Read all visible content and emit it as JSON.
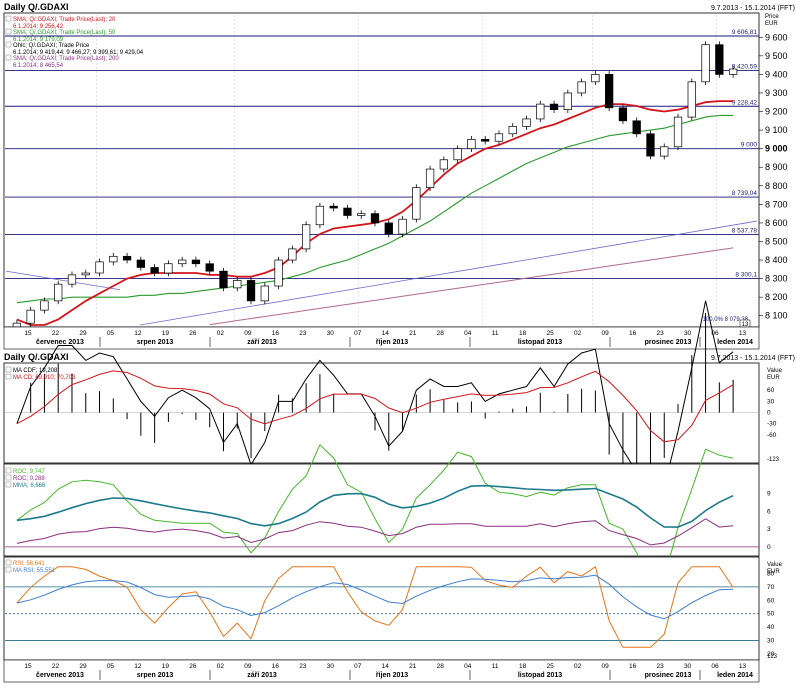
{
  "header": {
    "window_title": "Daily Q/.GDAXI",
    "window_title_2": "Daily Q/.GDAXI",
    "date_range": "9.7.2013 - 15.1.2014 (FFT)",
    "date_range_2": "9.7.2013 - 15.1.2014 (FFT)"
  },
  "price_panel": {
    "y_unit": "Price",
    "y_currency": "EUR",
    "legend": [
      {
        "label": "SMA; Q/.GDAXI; Trade Price(Last); 20",
        "value": "6.1.2014; 9 256,42",
        "color": "#d4141b"
      },
      {
        "label": "SMA; Q/.GDAXI; Trade Price(Last); 50",
        "value": "6.1.2014; 9 179,09",
        "color": "#2a9a2a"
      },
      {
        "label": "Ohlc; Q/.GDAXI; Trade Price",
        "value": "6.1.2014; 9 419,44; 9 466,27; 9 399,61; 9 429,04",
        "color": "#000000"
      },
      {
        "label": "SMA; Q/.GDAXI; Trade Price(Last); 200",
        "value": "6.1.2014; 8 465,54",
        "color": "#8a2f80"
      }
    ],
    "levels": [
      {
        "value": 9606.81,
        "label": "9 606,81"
      },
      {
        "value": 9420.59,
        "label": "9 420,59"
      },
      {
        "value": 9228.42,
        "label": "9 228,42"
      },
      {
        "value": 9000,
        "label": "9 000"
      },
      {
        "value": 8739.04,
        "label": "8 739,04"
      },
      {
        "value": 8537.78,
        "label": "8 537,78"
      },
      {
        "value": 8300.1,
        "label": "8 300,1"
      }
    ],
    "fib_label": "100,0% 8 079,38",
    "y_ticks": [
      "9 600",
      "9 500",
      "9 400",
      "9 300",
      "9 200",
      "9 100",
      "9 000",
      "8 900",
      "8 800",
      "8 700",
      "8 600",
      "8 500",
      "8 400",
      "8 300",
      "8 200",
      "8 100"
    ],
    "y_min": 8050,
    "y_max": 9720,
    "scroll_marker": "13"
  },
  "x_axis": {
    "day_ticks": [
      "15",
      "22",
      "29",
      "05",
      "12",
      "19",
      "26",
      "02",
      "09",
      "16",
      "23",
      "30",
      "07",
      "14",
      "21",
      "28",
      "04",
      "11",
      "18",
      "25",
      "02",
      "09",
      "16",
      "23",
      "30",
      "06",
      "13"
    ],
    "month_labels": [
      "červenec 2013",
      "srpen 2013",
      "září 2013",
      "říjen 2013",
      "listopad 2013",
      "prosinec 2013",
      "leden 2014"
    ]
  },
  "macd_panel": {
    "legend": [
      {
        "label": "MA CDF; 19,208",
        "color": "#000000"
      },
      {
        "label": "MA CD; 69,910; 70,703",
        "color": "#d4141b"
      }
    ],
    "y_unit": "Value",
    "y_currency": "EUR",
    "y_ticks": [
      "60",
      "30",
      "0",
      "-30",
      "-60"
    ],
    "bottom_tick": "-123",
    "y_min": -130,
    "y_max": 125
  },
  "roc_panel": {
    "legend": [
      {
        "label": "ROC; 9,747",
        "color": "#44b82a"
      },
      {
        "label": "ROC; 0,288",
        "color": "#8a2f80"
      },
      {
        "label": "MMA; 6,666",
        "color": "#1d7a8a"
      }
    ],
    "y_ticks": [
      "9",
      "6",
      "3",
      "0"
    ],
    "y_min": -1.2,
    "y_max": 13.5
  },
  "rsi_panel": {
    "legend": [
      {
        "label": "RSI; 58,641",
        "color": "#e8751a"
      },
      {
        "label": "MA RSI; 55,551",
        "color": "#3e7fd6"
      }
    ],
    "y_unit": "Value",
    "y_currency": "EUR",
    "y_ticks": [
      "80",
      "70",
      "60",
      "50",
      "40",
      "30",
      "20"
    ],
    "bottom_tick": "123",
    "y_min": 17,
    "y_max": 90,
    "levels": [
      70,
      50,
      30
    ]
  },
  "colors": {
    "sma20": "#d4141b",
    "sma50": "#2a9a2a",
    "sma200": "#b06a90",
    "level_line": "#1a1a7a",
    "trend_line": "#6a6acc",
    "frame": "#000000",
    "grid": "#c8c8c8"
  },
  "chart_data": [
    {
      "type": "candlestick",
      "title": "Daily Q/.GDAXI",
      "ylabel": "Price EUR",
      "ylim": [
        8050,
        9720
      ],
      "x": [
        "2013-07-09",
        "2013-07-11",
        "2013-07-15",
        "2013-07-18",
        "2013-07-22",
        "2013-07-25",
        "2013-07-29",
        "2013-08-01",
        "2013-08-05",
        "2013-08-08",
        "2013-08-12",
        "2013-08-15",
        "2013-08-19",
        "2013-08-22",
        "2013-08-26",
        "2013-08-29",
        "2013-09-02",
        "2013-09-05",
        "2013-09-09",
        "2013-09-12",
        "2013-09-16",
        "2013-09-19",
        "2013-09-23",
        "2013-09-26",
        "2013-09-30",
        "2013-10-03",
        "2013-10-07",
        "2013-10-10",
        "2013-10-14",
        "2013-10-17",
        "2013-10-21",
        "2013-10-24",
        "2013-10-28",
        "2013-10-31",
        "2013-11-04",
        "2013-11-07",
        "2013-11-11",
        "2013-11-14",
        "2013-11-18",
        "2013-11-21",
        "2013-11-25",
        "2013-11-28",
        "2013-12-02",
        "2013-12-05",
        "2013-12-09",
        "2013-12-12",
        "2013-12-16",
        "2013-12-19",
        "2013-12-23",
        "2013-12-27",
        "2013-12-30",
        "2014-01-02",
        "2014-01-06"
      ],
      "close": [
        8060,
        8130,
        8180,
        8270,
        8320,
        8330,
        8390,
        8420,
        8400,
        8360,
        8330,
        8380,
        8400,
        8380,
        8340,
        8250,
        8290,
        8180,
        8260,
        8400,
        8460,
        8590,
        8690,
        8680,
        8640,
        8650,
        8600,
        8540,
        8620,
        8790,
        8890,
        8940,
        9000,
        9050,
        9040,
        9080,
        9120,
        9160,
        9240,
        9210,
        9300,
        9360,
        9400,
        9220,
        9150,
        9080,
        8960,
        9010,
        9170,
        9360,
        9560,
        9400,
        9429
      ],
      "sma20": [
        8080,
        8050,
        8050,
        8080,
        8130,
        8180,
        8220,
        8260,
        8300,
        8320,
        8330,
        8330,
        8330,
        8330,
        8320,
        8320,
        8310,
        8310,
        8330,
        8360,
        8420,
        8490,
        8540,
        8570,
        8580,
        8590,
        8600,
        8620,
        8660,
        8720,
        8790,
        8860,
        8920,
        8960,
        9000,
        9020,
        9050,
        9080,
        9110,
        9130,
        9160,
        9190,
        9220,
        9240,
        9240,
        9230,
        9210,
        9200,
        9210,
        9230,
        9250,
        9256,
        9256
      ],
      "sma50": [
        8170,
        8180,
        8190,
        8190,
        8200,
        8200,
        8200,
        8200,
        8200,
        8210,
        8210,
        8220,
        8220,
        8230,
        8240,
        8250,
        8260,
        8270,
        8280,
        8290,
        8310,
        8330,
        8360,
        8380,
        8400,
        8430,
        8460,
        8490,
        8530,
        8570,
        8610,
        8660,
        8710,
        8760,
        8800,
        8840,
        8880,
        8920,
        8950,
        8980,
        9010,
        9030,
        9050,
        9070,
        9080,
        9090,
        9100,
        9110,
        9130,
        9150,
        9170,
        9179,
        9179
      ],
      "sma200_range": [
        7900,
        8465.54
      ]
    }
  ]
}
